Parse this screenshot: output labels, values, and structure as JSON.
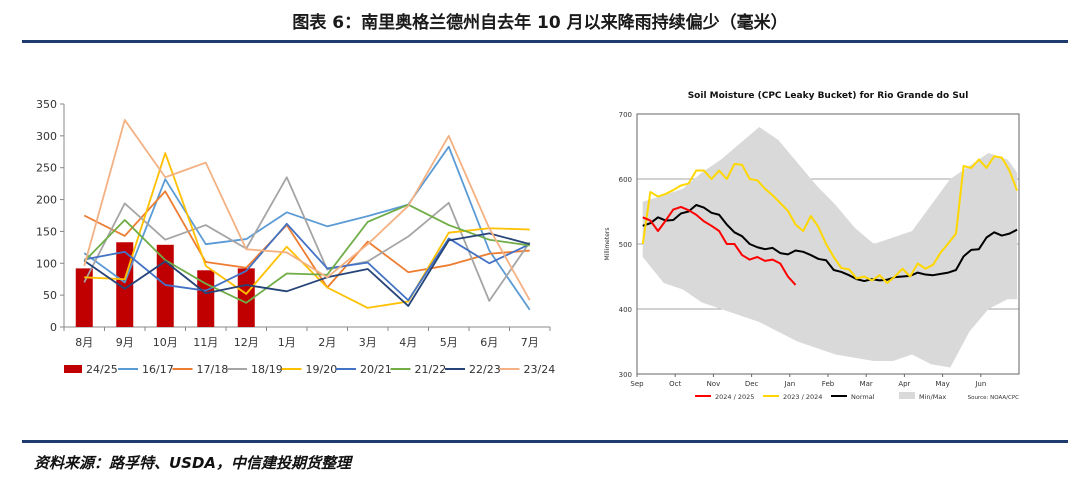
{
  "header": {
    "title": "图表 6：南里奥格兰德州自去年 10 月以来降雨持续偏少（毫米）"
  },
  "footer": {
    "source": "资料来源：路孚特、USDA，中信建投期货整理"
  },
  "colors": {
    "rule": "#1f3b6e"
  },
  "chart_data": [
    {
      "type": "bar+line",
      "title": "",
      "xlabel": "",
      "ylabel": "",
      "ylim": [
        0,
        350
      ],
      "yticks": [
        0,
        50,
        100,
        150,
        200,
        250,
        300,
        350
      ],
      "categories": [
        "8月",
        "9月",
        "10月",
        "11月",
        "12月",
        "1月",
        "2月",
        "3月",
        "4月",
        "5月",
        "6月",
        "7月"
      ],
      "bars": {
        "name": "24/25",
        "color": "#c00000",
        "values": [
          92,
          133,
          129,
          89,
          92
        ]
      },
      "series": [
        {
          "name": "16/17",
          "color": "#5b9bd5",
          "values": [
            116,
            70,
            232,
            130,
            138,
            180,
            158,
            174,
            192,
            283,
            120,
            27
          ]
        },
        {
          "name": "17/18",
          "color": "#ed7d31",
          "values": [
            175,
            143,
            213,
            102,
            93,
            160,
            62,
            134,
            86,
            97,
            115,
            120
          ]
        },
        {
          "name": "18/19",
          "color": "#a5a5a5",
          "values": [
            70,
            194,
            137,
            160,
            123,
            235,
            90,
            103,
            142,
            195,
            41,
            133
          ]
        },
        {
          "name": "19/20",
          "color": "#ffc000",
          "values": [
            78,
            75,
            273,
            96,
            52,
            126,
            62,
            30,
            40,
            148,
            155,
            153
          ]
        },
        {
          "name": "20/21",
          "color": "#4472c4",
          "values": [
            106,
            118,
            66,
            57,
            88,
            162,
            92,
            101,
            42,
            139,
            100,
            130
          ]
        },
        {
          "name": "21/22",
          "color": "#70ad47",
          "values": [
            103,
            168,
            105,
            68,
            38,
            84,
            82,
            165,
            192,
            160,
            137,
            128
          ]
        },
        {
          "name": "22/23",
          "color": "#264478",
          "values": [
            104,
            60,
            103,
            53,
            66,
            56,
            78,
            91,
            33,
            136,
            147,
            130
          ]
        },
        {
          "name": "23/24",
          "color": "#f4b183",
          "values": [
            96,
            325,
            235,
            258,
            122,
            117,
            78,
            130,
            190,
            300,
            155,
            42
          ]
        }
      ],
      "legend_position": "bottom"
    },
    {
      "type": "line",
      "title": "Soil Moisture (CPC Leaky Bucket) for Rio Grande do Sul",
      "xlabel": "",
      "ylabel": "Millimeters",
      "ylim": [
        300,
        700
      ],
      "yticks": [
        300,
        400,
        500,
        600,
        700
      ],
      "xticks": [
        "Sep",
        "Oct",
        "Nov",
        "Dec",
        "Jan",
        "Feb",
        "Mar",
        "Apr",
        "May",
        "Jun"
      ],
      "x_months_index": [
        0,
        1,
        2,
        3,
        4,
        5,
        6,
        7,
        8,
        9
      ],
      "x_range_months": [
        0,
        10
      ],
      "series": [
        {
          "name": "2024 / 2025",
          "color": "#ff0000",
          "x": [
            0.15,
            0.35,
            0.55,
            0.75,
            0.95,
            1.15,
            1.35,
            1.55,
            1.75,
            1.95,
            2.15,
            2.35,
            2.55,
            2.75,
            2.95,
            3.15,
            3.35,
            3.55,
            3.75,
            3.95,
            4.15
          ],
          "y": [
            541,
            536,
            520,
            536,
            553,
            557,
            552,
            545,
            535,
            528,
            520,
            500,
            500,
            483,
            476,
            480,
            474,
            476,
            470,
            450,
            437
          ]
        },
        {
          "name": "2023 / 2024",
          "color": "#ffd700",
          "x": [
            0.15,
            0.35,
            0.55,
            0.75,
            0.95,
            1.15,
            1.35,
            1.55,
            1.75,
            1.95,
            2.15,
            2.35,
            2.55,
            2.75,
            2.95,
            3.15,
            3.35,
            3.55,
            3.75,
            3.95,
            4.15,
            4.35,
            4.55,
            4.75,
            4.95,
            5.15,
            5.35,
            5.55,
            5.75,
            5.95,
            6.15,
            6.35,
            6.55,
            6.75,
            6.95,
            7.15,
            7.35,
            7.55,
            7.75,
            7.95,
            8.15,
            8.35,
            8.55,
            8.75,
            8.95,
            9.15,
            9.35,
            9.55,
            9.75,
            9.95
          ],
          "y": [
            500,
            580,
            573,
            577,
            583,
            590,
            593,
            613,
            613,
            600,
            613,
            600,
            623,
            622,
            600,
            598,
            585,
            575,
            563,
            551,
            530,
            520,
            543,
            526,
            500,
            480,
            463,
            461,
            447,
            450,
            444,
            452,
            440,
            450,
            462,
            450,
            470,
            462,
            468,
            487,
            501,
            516,
            620,
            617,
            630,
            617,
            635,
            633,
            613,
            582
          ]
        },
        {
          "name": "Normal",
          "color": "#000000",
          "x": [
            0.15,
            0.35,
            0.55,
            0.75,
            0.95,
            1.15,
            1.35,
            1.55,
            1.75,
            1.95,
            2.15,
            2.35,
            2.55,
            2.75,
            2.95,
            3.15,
            3.35,
            3.55,
            3.75,
            3.95,
            4.15,
            4.35,
            4.55,
            4.75,
            4.95,
            5.15,
            5.35,
            5.55,
            5.75,
            5.95,
            6.15,
            6.35,
            6.55,
            6.75,
            6.95,
            7.15,
            7.35,
            7.55,
            7.75,
            7.95,
            8.15,
            8.35,
            8.55,
            8.75,
            8.95,
            9.15,
            9.35,
            9.55,
            9.75,
            9.95
          ],
          "y": [
            528,
            532,
            541,
            536,
            537,
            547,
            550,
            560,
            556,
            548,
            545,
            530,
            518,
            512,
            500,
            495,
            492,
            494,
            486,
            484,
            490,
            488,
            483,
            477,
            475,
            460,
            457,
            452,
            446,
            443,
            446,
            444,
            445,
            449,
            450,
            451,
            456,
            453,
            452,
            454,
            456,
            460,
            481,
            491,
            492,
            510,
            518,
            513,
            516,
            522
          ]
        },
        {
          "name": "Min/Max",
          "color": "#d9d9d9",
          "x": [
            0.15,
            0.7,
            1.2,
            1.7,
            2.2,
            2.7,
            3.2,
            3.7,
            4.2,
            4.7,
            5.2,
            5.7,
            6.2,
            6.7,
            7.2,
            7.7,
            8.2,
            8.7,
            9.2,
            9.7,
            9.95
          ],
          "max": [
            565,
            575,
            585,
            610,
            630,
            655,
            680,
            660,
            625,
            590,
            560,
            525,
            500,
            510,
            520,
            560,
            600,
            620,
            640,
            630,
            610
          ],
          "min": [
            480,
            440,
            430,
            410,
            400,
            390,
            380,
            365,
            350,
            340,
            330,
            325,
            320,
            320,
            330,
            315,
            310,
            365,
            400,
            415,
            415
          ]
        }
      ],
      "legend_position": "bottom",
      "source_note": "Source: NOAA/CPC"
    }
  ]
}
